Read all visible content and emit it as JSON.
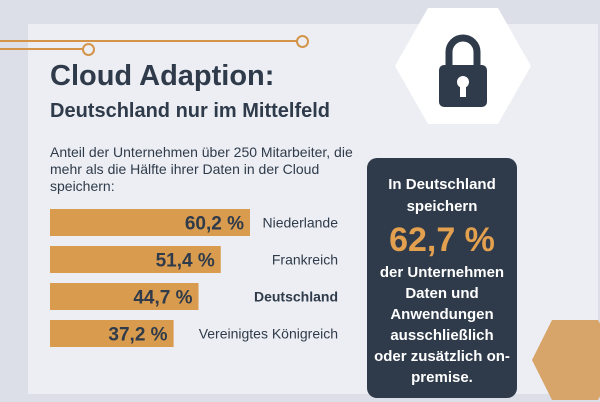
{
  "title": "Cloud Adaption:",
  "subtitle": "Deutschland nur im Mittelfeld",
  "description": "Anteil der Unternehmen über 250 Mitarbeiter, die mehr als die Hälfte ihrer Daten in der Cloud speichern:",
  "icon": "padlock-icon",
  "colors": {
    "bar": "#d99b4e",
    "dark": "#2f3b4a",
    "accent": "#e3a04f",
    "background": "#eceef3"
  },
  "chart_data": {
    "type": "bar",
    "orientation": "horizontal",
    "categories": [
      "Niederlande",
      "Frankreich",
      "Deutschland",
      "Vereinigtes Königreich"
    ],
    "values": [
      60.2,
      51.4,
      44.7,
      37.2
    ],
    "value_labels": [
      "60,2 %",
      "51,4 %",
      "44,7 %",
      "37,2 %"
    ],
    "highlighted_category": "Deutschland",
    "unit": "%",
    "xlim": [
      0,
      60.2
    ],
    "grid": false,
    "legend": "none"
  },
  "callout": {
    "pre": "In Deutschland speichern",
    "value": "62,7 %",
    "post": "der Unternehmen Daten und Anwendungen ausschließlich oder zusätzlich on-premise."
  }
}
